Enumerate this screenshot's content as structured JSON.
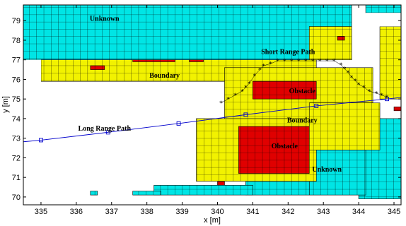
{
  "chart_data": {
    "type": "heatmap",
    "title": "",
    "xlabel": "x [m]",
    "ylabel": "y [m]",
    "xlim": [
      334.5,
      345.2
    ],
    "ylim": [
      69.6,
      79.8
    ],
    "xticks": [
      335,
      336,
      337,
      338,
      339,
      340,
      341,
      342,
      343,
      344,
      345
    ],
    "yticks": [
      70,
      71,
      72,
      73,
      74,
      75,
      76,
      77,
      78,
      79
    ],
    "grid_cell": 0.2,
    "colors": {
      "unknown": "#00e5e5",
      "boundary": "#f2f200",
      "obstacle": "#e00000",
      "free": "#ffffff",
      "grid": "#000000",
      "long_path": "#0000cc",
      "short_path": "#000000"
    },
    "regions": {
      "unknown": [
        {
          "x": [
            334.5,
            343.8
          ],
          "y": [
            77.0,
            79.8
          ]
        },
        {
          "x": [
            344.2,
            345.2
          ],
          "y": [
            79.4,
            79.8
          ]
        },
        {
          "x": [
            344.0,
            345.2
          ],
          "y": [
            69.9,
            74.0
          ]
        },
        {
          "x": [
            342.6,
            344.2
          ],
          "y": [
            70.1,
            72.4
          ]
        },
        {
          "x": [
            340.8,
            342.6
          ],
          "y": [
            70.1,
            70.9
          ]
        },
        {
          "x": [
            338.2,
            341.0
          ],
          "y": [
            70.1,
            70.6
          ]
        },
        {
          "x": [
            337.6,
            338.4
          ],
          "y": [
            70.1,
            70.3
          ]
        },
        {
          "x": [
            336.4,
            336.6
          ],
          "y": [
            70.1,
            70.3
          ]
        }
      ],
      "boundary": [
        {
          "x": [
            335.0,
            342.8
          ],
          "y": [
            75.9,
            77.0
          ]
        },
        {
          "x": [
            342.6,
            343.8
          ],
          "y": [
            77.0,
            78.7
          ]
        },
        {
          "x": [
            340.2,
            344.4
          ],
          "y": [
            73.4,
            76.6
          ]
        },
        {
          "x": [
            339.4,
            342.8
          ],
          "y": [
            70.8,
            74.0
          ]
        },
        {
          "x": [
            342.6,
            344.6
          ],
          "y": [
            72.4,
            74.8
          ]
        },
        {
          "x": [
            344.6,
            345.2
          ],
          "y": [
            75.0,
            78.7
          ]
        }
      ],
      "obstacle": [
        {
          "x": [
            341.0,
            342.8
          ],
          "y": [
            75.0,
            75.9
          ]
        },
        {
          "x": [
            340.6,
            342.6
          ],
          "y": [
            71.2,
            73.6
          ]
        },
        {
          "x": [
            343.4,
            343.6
          ],
          "y": [
            78.0,
            78.2
          ]
        },
        {
          "x": [
            336.4,
            336.8
          ],
          "y": [
            76.5,
            76.7
          ]
        },
        {
          "x": [
            337.6,
            338.8
          ],
          "y": [
            76.9,
            77.0
          ]
        },
        {
          "x": [
            339.2,
            339.6
          ],
          "y": [
            76.9,
            77.0
          ]
        },
        {
          "x": [
            345.0,
            345.2
          ],
          "y": [
            74.4,
            74.6
          ]
        },
        {
          "x": [
            340.0,
            340.2
          ],
          "y": [
            70.6,
            70.8
          ]
        }
      ],
      "free": [
        {
          "x": [
            334.5,
            335.0
          ],
          "y": [
            73.8,
            77.0
          ]
        },
        {
          "x": [
            344.2,
            345.2
          ],
          "y": [
            78.7,
            79.4
          ]
        }
      ]
    },
    "annotations": [
      {
        "text": "Unknown",
        "x": 336.8,
        "y": 79.1
      },
      {
        "text": "Boundary",
        "x": 338.5,
        "y": 76.2
      },
      {
        "text": "Short Range Path",
        "x": 342.0,
        "y": 77.4
      },
      {
        "text": "Obstacle",
        "x": 342.4,
        "y": 75.4
      },
      {
        "text": "Boundary",
        "x": 342.4,
        "y": 73.9
      },
      {
        "text": "Long Range Path",
        "x": 336.8,
        "y": 73.5
      },
      {
        "text": "Obstacle",
        "x": 341.9,
        "y": 72.6
      },
      {
        "text": "Unknown",
        "x": 343.1,
        "y": 71.4
      }
    ],
    "series": [
      {
        "name": "Long Range Path",
        "marker": "square",
        "x": [
          334.4,
          335.0,
          336.9,
          338.9,
          340.8,
          342.8,
          344.8,
          345.3
        ],
        "y": [
          72.8,
          72.9,
          73.3,
          73.75,
          74.2,
          74.65,
          75.0,
          75.1
        ],
        "marked": [
          1,
          2,
          3,
          4,
          5,
          6
        ]
      },
      {
        "name": "Short Range Path",
        "marker": "star",
        "x": [
          340.1,
          340.3,
          340.5,
          340.7,
          340.8,
          340.9,
          341.05,
          341.2,
          341.3,
          341.5,
          341.7,
          341.9,
          342.1,
          342.3,
          342.5,
          342.7,
          342.9,
          343.1,
          343.3,
          343.5,
          343.6,
          343.7,
          343.8,
          343.9,
          344.0,
          344.15,
          344.3,
          344.5,
          344.65,
          344.8
        ],
        "y": [
          74.8,
          75.0,
          75.2,
          75.4,
          75.6,
          75.8,
          76.2,
          76.5,
          76.7,
          76.8,
          76.95,
          76.95,
          76.95,
          76.95,
          76.95,
          76.95,
          76.95,
          76.95,
          76.95,
          76.75,
          76.55,
          76.35,
          76.1,
          75.95,
          75.75,
          75.6,
          75.4,
          75.3,
          75.2,
          75.1
        ]
      }
    ]
  }
}
